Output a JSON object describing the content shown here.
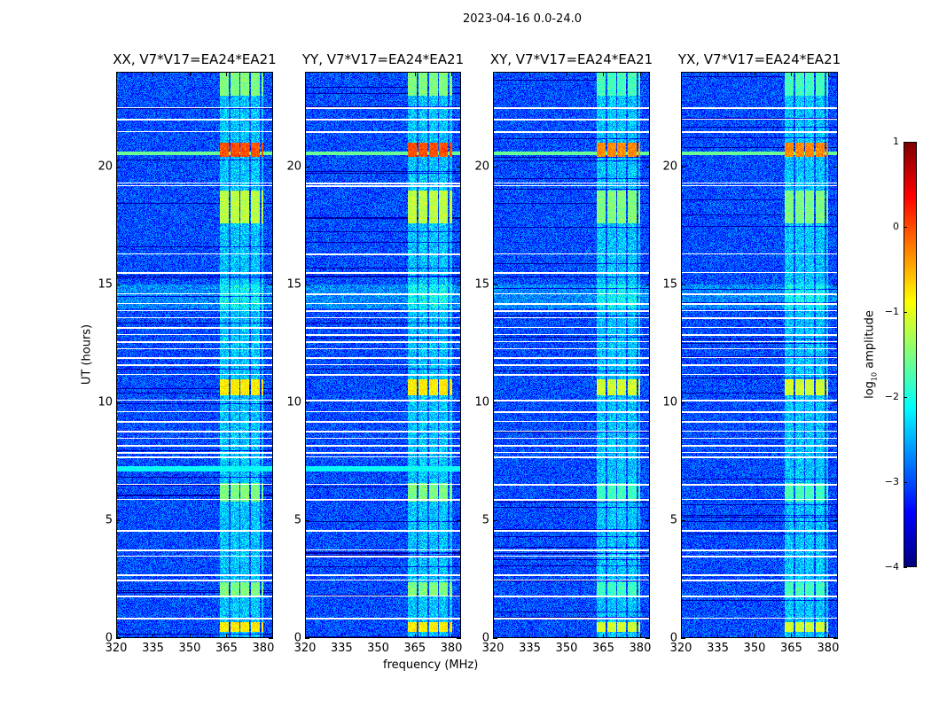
{
  "chart_data": {
    "type": "heatmap",
    "title": "2023-04-16 0.0-24.0",
    "xlabel": "frequency (MHz)",
    "ylabel": "UT (hours)",
    "xlim": [
      320,
      384
    ],
    "ylim": [
      0,
      24
    ],
    "xticks": [
      "320",
      "335",
      "350",
      "365",
      "380"
    ],
    "yticks": [
      "0",
      "5",
      "10",
      "15",
      "20"
    ],
    "panels": [
      {
        "title": "XX, V7*V17=EA24*EA21"
      },
      {
        "title": "YY, V7*V17=EA24*EA21"
      },
      {
        "title": "XY, V7*V17=EA24*EA21"
      },
      {
        "title": "YX, V7*V17=EA24*EA21"
      }
    ],
    "colorbar": {
      "label_prefix": "log",
      "label_sub": "10",
      "label_suffix": " amplitude",
      "range": [
        -4,
        1
      ],
      "ticks": [
        "−4",
        "−3",
        "−2",
        "−1",
        "0",
        "1"
      ],
      "colormap": "jet"
    },
    "background_level": -3,
    "signal_band_mhz": [
      362,
      380
    ],
    "bright_hours": [
      {
        "from": 20.4,
        "to": 21.0,
        "level": 0
      },
      {
        "from": 10.3,
        "to": 11.0,
        "level": -0.8
      },
      {
        "from": 17.6,
        "to": 19.0,
        "level": -1.2
      },
      {
        "from": 5.8,
        "to": 6.6,
        "level": -1.5
      },
      {
        "from": 1.8,
        "to": 2.4,
        "level": -1.5
      },
      {
        "from": 0.3,
        "to": 0.7,
        "level": -0.8
      },
      {
        "from": 23.0,
        "to": 24.0,
        "level": -1.5
      }
    ],
    "gap_hours": [
      22.5,
      22.0,
      21.5,
      19.3,
      19.2,
      16.3,
      15.5,
      14.6,
      14.2,
      13.9,
      13.6,
      13.2,
      12.9,
      12.6,
      12.3,
      11.9,
      11.6,
      11.2,
      10.1,
      9.6,
      9.2,
      8.8,
      8.5,
      8.2,
      7.9,
      7.7,
      6.55,
      5.9,
      4.6,
      3.75,
      3.5,
      2.7,
      2.47,
      1.8,
      0.86
    ]
  }
}
